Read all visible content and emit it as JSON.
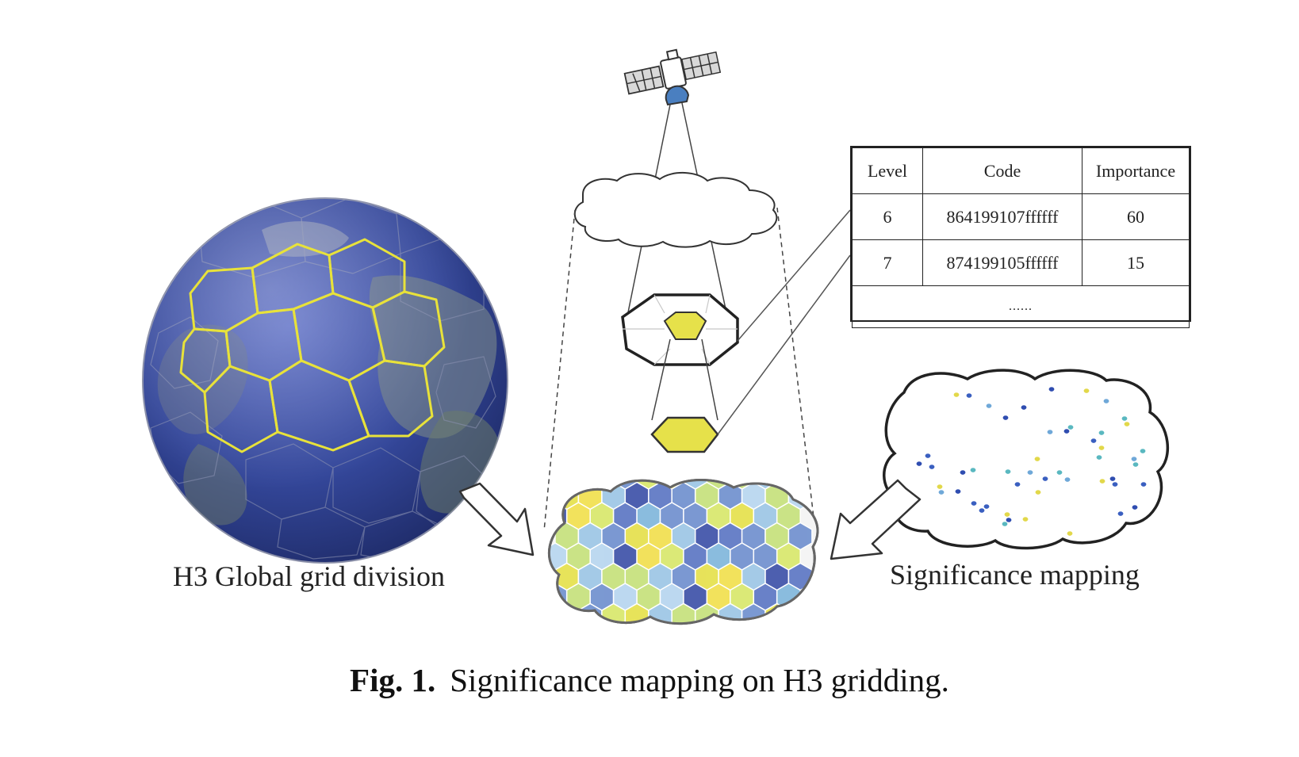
{
  "labels": {
    "globe": "H3 Global grid division",
    "significance": "Significance mapping"
  },
  "caption": {
    "prefix": "Fig. 1.",
    "text": "Significance mapping on H3 gridding."
  },
  "table": {
    "headers": [
      "Level",
      "Code",
      "Importance"
    ],
    "rows": [
      {
        "level": "6",
        "code": "864199107ffffff",
        "importance": "60"
      },
      {
        "level": "7",
        "code": "874199105ffffff",
        "importance": "15"
      }
    ],
    "more": "......"
  },
  "colors": {
    "ocean": "#3a4f9e",
    "grid_yellow": "#e8e23a",
    "hex_yellow": "#e6e14a",
    "hex_blue_light": "#9cc6e6",
    "hex_blue_dark": "#3b4fa8",
    "dot_blue": "#3a5fc0",
    "dot_teal": "#5ab8c0",
    "dot_yellow": "#e2d84a",
    "satellite_blue": "#4a7fc0"
  },
  "icons": [
    "globe-icon",
    "satellite-icon",
    "cloud-icon",
    "arrow-icon"
  ]
}
